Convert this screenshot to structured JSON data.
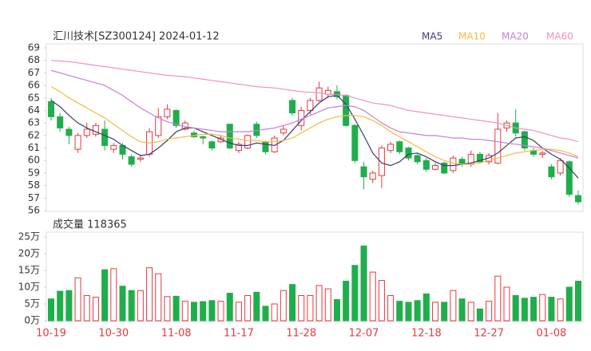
{
  "chart_data": [
    {
      "type": "candlestick",
      "title": "汇川技术[SZ300124] 2024-01-12",
      "categories": [
        "10-19",
        null,
        null,
        null,
        null,
        null,
        null,
        "10-30",
        null,
        null,
        null,
        null,
        null,
        null,
        "11-08",
        null,
        null,
        null,
        null,
        null,
        null,
        "11-17",
        null,
        null,
        null,
        null,
        null,
        null,
        "11-28",
        null,
        null,
        null,
        null,
        null,
        null,
        "12-07",
        null,
        null,
        null,
        null,
        null,
        null,
        "12-18",
        null,
        null,
        null,
        null,
        null,
        null,
        "12-27",
        null,
        null,
        null,
        null,
        null,
        null,
        "01-08",
        null,
        null,
        null
      ],
      "open": [
        64.7,
        63.5,
        62.5,
        60.9,
        62.0,
        62.1,
        62.5,
        60.9,
        61.2,
        60.3,
        60.1,
        60.5,
        62.0,
        63.5,
        64.0,
        62.5,
        62.2,
        61.9,
        61.5,
        61.5,
        62.9,
        60.8,
        61.0,
        62.9,
        61.5,
        60.7,
        62.2,
        64.8,
        62.8,
        64.0,
        64.8,
        65.3,
        65.5,
        65.2,
        62.8,
        59.5,
        58.5,
        58.8,
        60.8,
        61.5,
        61.0,
        60.4,
        60.0,
        59.3,
        59.8,
        59.2,
        60.1,
        59.7,
        60.5,
        59.9,
        59.8,
        62.6,
        63.0,
        62.3,
        60.8,
        60.5,
        59.5,
        59.0,
        59.9,
        57.2
      ],
      "high": [
        65.0,
        63.8,
        62.7,
        62.2,
        63.0,
        63.0,
        63.2,
        61.4,
        61.4,
        60.5,
        60.5,
        62.6,
        64.2,
        64.5,
        64.1,
        63.2,
        62.4,
        62.0,
        61.6,
        62.0,
        62.9,
        61.5,
        62.1,
        63.1,
        61.6,
        62.0,
        62.8,
        65.0,
        64.3,
        65.0,
        66.3,
        65.9,
        66.0,
        65.3,
        62.9,
        59.9,
        59.2,
        61.2,
        61.5,
        61.6,
        61.1,
        60.6,
        60.2,
        59.8,
        59.9,
        60.4,
        60.3,
        60.8,
        60.7,
        60.6,
        63.8,
        63.2,
        64.1,
        62.4,
        61.0,
        60.8,
        59.7,
        60.2,
        60.0,
        57.6
      ],
      "low": [
        63.2,
        62.3,
        61.3,
        60.6,
        61.8,
        61.9,
        60.8,
        60.6,
        60.1,
        59.5,
        59.9,
        60.3,
        61.8,
        63.3,
        62.6,
        62.4,
        61.8,
        61.3,
        60.8,
        61.4,
        60.9,
        60.6,
        60.9,
        61.8,
        60.5,
        60.6,
        62.0,
        63.6,
        62.4,
        63.7,
        64.7,
        65.0,
        64.9,
        62.7,
        59.8,
        57.7,
        58.2,
        57.8,
        60.6,
        60.5,
        60.0,
        59.7,
        59.1,
        59.2,
        58.9,
        59.0,
        59.5,
        59.5,
        59.8,
        59.7,
        59.7,
        62.3,
        61.9,
        60.8,
        60.3,
        60.2,
        58.5,
        58.8,
        57.1,
        56.5
      ],
      "close": [
        63.5,
        62.6,
        62.0,
        62.0,
        62.5,
        62.8,
        61.2,
        61.2,
        60.5,
        59.7,
        60.2,
        62.3,
        63.5,
        64.1,
        62.8,
        63.0,
        61.9,
        61.8,
        61.0,
        61.8,
        61.0,
        61.3,
        62.0,
        62.0,
        60.7,
        61.8,
        62.5,
        63.8,
        64.0,
        64.8,
        65.8,
        65.6,
        65.1,
        62.8,
        60.0,
        58.7,
        59.0,
        61.0,
        61.3,
        60.7,
        60.2,
        59.9,
        59.3,
        59.6,
        59.0,
        60.2,
        59.7,
        60.5,
        59.9,
        60.4,
        62.5,
        63.0,
        62.2,
        61.0,
        60.5,
        60.6,
        58.7,
        60.0,
        57.3,
        56.7
      ],
      "up_color": "#e8383d",
      "down_color": "#1fae4b",
      "series": [
        {
          "name": "MA5",
          "color": "#3b3b70",
          "values": [
            64.8,
            64.3,
            63.6,
            63.0,
            62.6,
            62.3,
            62.0,
            61.7,
            61.2,
            60.8,
            60.4,
            60.5,
            61.0,
            61.6,
            62.3,
            62.6,
            62.6,
            62.3,
            62.0,
            61.7,
            61.4,
            61.2,
            61.2,
            61.4,
            61.3,
            61.2,
            61.6,
            62.4,
            63.2,
            63.9,
            64.6,
            65.1,
            65.2,
            64.5,
            63.3,
            62.0,
            60.6,
            59.8,
            59.6,
            59.9,
            60.5,
            60.6,
            60.3,
            59.9,
            59.6,
            59.6,
            59.7,
            59.8,
            60.0,
            60.2,
            60.6,
            61.2,
            61.8,
            61.9,
            61.6,
            61.0,
            60.5,
            60.1,
            59.4,
            58.6
          ]
        },
        {
          "name": "MA10",
          "color": "#f5b942",
          "values": [
            65.9,
            65.5,
            65.0,
            64.6,
            64.2,
            63.8,
            63.4,
            62.9,
            62.4,
            61.9,
            61.5,
            61.4,
            61.5,
            61.7,
            61.8,
            61.9,
            62.0,
            62.1,
            62.1,
            62.0,
            61.8,
            61.7,
            61.6,
            61.6,
            61.5,
            61.5,
            61.6,
            61.8,
            62.2,
            62.6,
            63.0,
            63.3,
            63.5,
            63.6,
            63.6,
            63.5,
            63.2,
            62.8,
            62.3,
            61.9,
            61.5,
            61.1,
            60.7,
            60.3,
            60.0,
            59.8,
            59.7,
            59.7,
            59.8,
            60.0,
            60.2,
            60.4,
            60.6,
            60.7,
            60.8,
            60.9,
            60.9,
            60.8,
            60.6,
            60.3
          ]
        },
        {
          "name": "MA20",
          "color": "#c67fd9",
          "values": [
            67.2,
            67.0,
            66.8,
            66.6,
            66.4,
            66.2,
            66.0,
            65.6,
            65.2,
            64.7,
            64.2,
            63.8,
            63.4,
            63.1,
            62.9,
            62.7,
            62.6,
            62.5,
            62.4,
            62.3,
            62.3,
            62.3,
            62.3,
            62.4,
            62.5,
            62.6,
            62.8,
            63.0,
            63.3,
            63.6,
            63.9,
            64.2,
            64.3,
            64.4,
            64.3,
            64.0,
            63.5,
            63.0,
            62.6,
            62.3,
            62.2,
            62.1,
            62.0,
            62.0,
            61.9,
            61.8,
            61.8,
            61.7,
            61.7,
            61.6,
            61.5,
            61.4,
            61.3,
            61.2,
            61.1,
            61.0,
            60.8,
            60.6,
            60.4,
            60.2
          ]
        },
        {
          "name": "MA60",
          "color": "#f28fc3",
          "values": [
            68.0,
            67.95,
            67.9,
            67.8,
            67.7,
            67.6,
            67.5,
            67.4,
            67.3,
            67.2,
            67.1,
            67.0,
            66.9,
            66.8,
            66.75,
            66.7,
            66.6,
            66.5,
            66.4,
            66.3,
            66.2,
            66.1,
            66.0,
            65.9,
            65.85,
            65.8,
            65.7,
            65.6,
            65.5,
            65.45,
            65.4,
            65.3,
            65.25,
            65.2,
            65.0,
            64.8,
            64.6,
            64.5,
            64.4,
            64.2,
            64.0,
            63.9,
            63.8,
            63.7,
            63.6,
            63.5,
            63.4,
            63.3,
            63.2,
            63.1,
            63.0,
            62.8,
            62.6,
            62.5,
            62.4,
            62.2,
            62.0,
            61.8,
            61.7,
            61.5
          ]
        }
      ],
      "ylim": [
        56,
        69
      ],
      "yticks": [
        56,
        57,
        58,
        59,
        60,
        61,
        62,
        63,
        64,
        65,
        66,
        67,
        68,
        69
      ]
    },
    {
      "type": "bar",
      "title": "成交量 118365",
      "values": [
        6.5,
        8.8,
        9,
        12.8,
        7.5,
        7,
        15.2,
        15.5,
        10.3,
        9,
        9,
        15.8,
        14,
        7.2,
        7.3,
        5.8,
        5.5,
        5.7,
        6,
        5.8,
        8.2,
        5.5,
        7.5,
        8.5,
        4.3,
        5,
        9,
        10.8,
        7.5,
        7.5,
        10.5,
        9.5,
        6.3,
        11.8,
        16.5,
        22.3,
        14.5,
        12,
        7.5,
        5.8,
        5.5,
        6,
        8,
        5.5,
        5.5,
        9,
        6.5,
        5.5,
        3.5,
        5.8,
        13.3,
        10,
        7.5,
        6.7,
        7,
        7.8,
        7,
        6.5,
        10,
        11.8
      ],
      "ylim": [
        0,
        25
      ],
      "yticks": [
        {
          "value": 0,
          "label": "0万"
        },
        {
          "value": 5,
          "label": "5万"
        },
        {
          "value": 10,
          "label": "10万"
        },
        {
          "value": 15,
          "label": "15万"
        },
        {
          "value": 20,
          "label": "20万"
        },
        {
          "value": 25,
          "label": "25万"
        }
      ]
    }
  ]
}
